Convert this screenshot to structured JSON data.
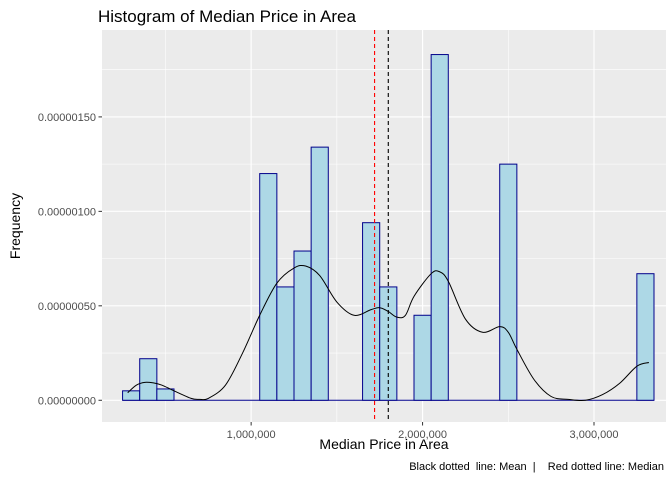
{
  "chart_data": {
    "type": "bar",
    "title": "Histogram of Median Price in Area",
    "xlabel": "Median Price in Area",
    "ylabel": "Frequency",
    "caption": "Black dotted  line: Mean  |    Red dotted line: Median",
    "xlim": [
      130000,
      3420000
    ],
    "ylim": [
      -1.15e-07,
      1.96e-06
    ],
    "x_ticks": [
      {
        "value": 1000000,
        "label": "1,000,000"
      },
      {
        "value": 2000000,
        "label": "2,000,000"
      },
      {
        "value": 3000000,
        "label": "3,000,000"
      }
    ],
    "y_ticks": [
      {
        "value": 0,
        "label": "0.00000000"
      },
      {
        "value": 5e-07,
        "label": "0.00000050"
      },
      {
        "value": 1e-06,
        "label": "0.00000100"
      },
      {
        "value": 1.5e-06,
        "label": "0.00000150"
      }
    ],
    "bin_width": 100000,
    "bins": [
      {
        "start": 250000,
        "end": 350000,
        "density": 5e-08
      },
      {
        "start": 350000,
        "end": 450000,
        "density": 2.2e-07
      },
      {
        "start": 450000,
        "end": 550000,
        "density": 6e-08
      },
      {
        "start": 1050000,
        "end": 1150000,
        "density": 1.2e-06
      },
      {
        "start": 1150000,
        "end": 1250000,
        "density": 6e-07
      },
      {
        "start": 1250000,
        "end": 1350000,
        "density": 7.9e-07
      },
      {
        "start": 1350000,
        "end": 1450000,
        "density": 1.34e-06
      },
      {
        "start": 1650000,
        "end": 1750000,
        "density": 9.4e-07
      },
      {
        "start": 1750000,
        "end": 1850000,
        "density": 6e-07
      },
      {
        "start": 1950000,
        "end": 2050000,
        "density": 4.5e-07
      },
      {
        "start": 2050000,
        "end": 2150000,
        "density": 1.83e-06
      },
      {
        "start": 2450000,
        "end": 2550000,
        "density": 1.25e-06
      },
      {
        "start": 3250000,
        "end": 3350000,
        "density": 6.7e-07
      }
    ],
    "density_curve": {
      "x": [
        280000,
        330000,
        380000,
        430000,
        480000,
        550000,
        650000,
        700000,
        750000,
        850000,
        950000,
        1050000,
        1150000,
        1250000,
        1320000,
        1400000,
        1500000,
        1600000,
        1700000,
        1750000,
        1800000,
        1850000,
        1900000,
        1950000,
        2050000,
        2100000,
        2150000,
        2250000,
        2350000,
        2450000,
        2500000,
        2550000,
        2650000,
        2750000,
        2850000,
        2950000,
        3050000,
        3150000,
        3250000,
        3320000
      ],
      "y": [
        4e-08,
        8e-08,
        9.5e-08,
        9.2e-08,
        8e-08,
        5e-08,
        1e-08,
        5e-09,
        1e-08,
        8e-08,
        2.5e-07,
        4.5e-07,
        6.2e-07,
        7e-07,
        7.1e-07,
        6.6e-07,
        5.2e-07,
        4.5e-07,
        4.8e-07,
        4.9e-07,
        4.7e-07,
        4.4e-07,
        4.5e-07,
        5.5e-07,
        6.7e-07,
        6.8e-07,
        6.3e-07,
        4.3e-07,
        3.6e-07,
        3.9e-07,
        3.6e-07,
        2.7e-07,
        1.1e-07,
        2e-08,
        5e-09,
        0.0,
        3e-08,
        9e-08,
        1.8e-07,
        2e-07
      ]
    },
    "reference_lines": [
      {
        "name": "Median",
        "value": 1720000,
        "color": "#ff0000"
      },
      {
        "name": "Mean",
        "value": 1800000,
        "color": "#000000"
      }
    ],
    "colors": {
      "panel_bg": "#ebebeb",
      "grid_major": "#ffffff",
      "bar_fill": "#add8e6",
      "bar_stroke": "#00008b",
      "curve": "#000000"
    },
    "grid": true,
    "legend": "none"
  }
}
